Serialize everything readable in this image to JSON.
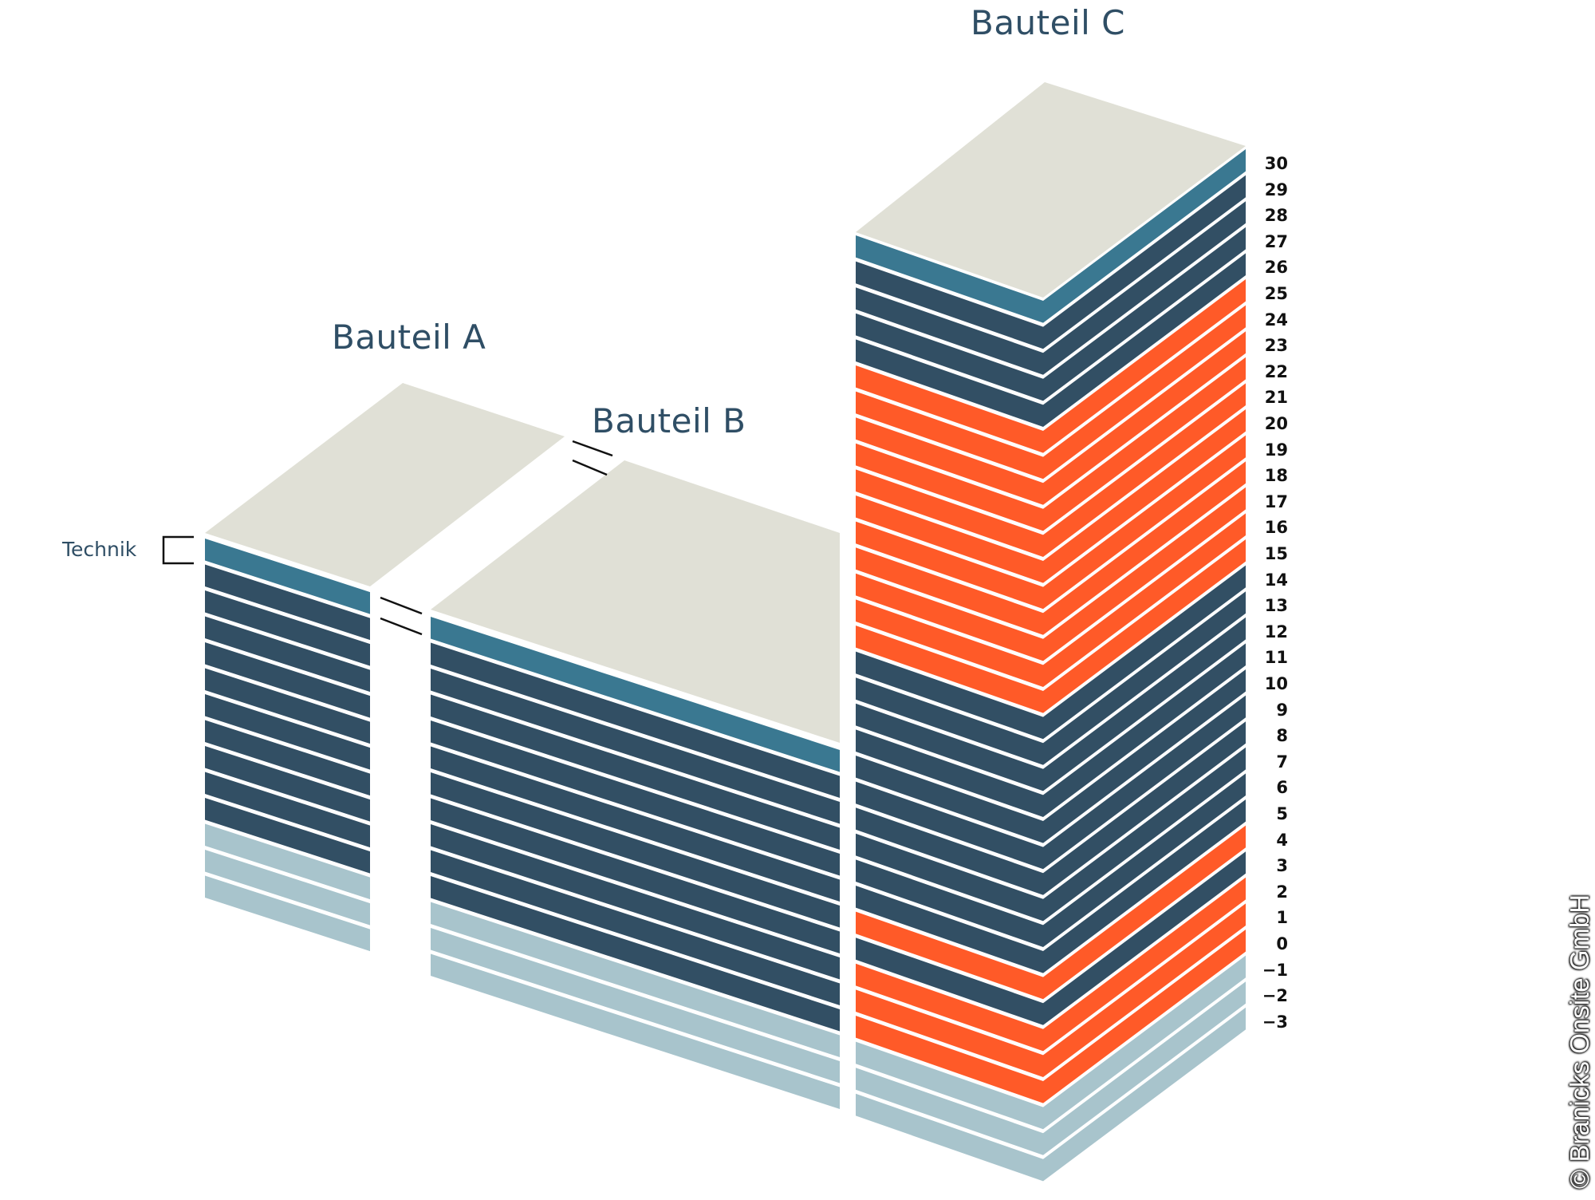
{
  "colors": {
    "roof": "#e0e0d6",
    "technik": "#3a7891",
    "office": "#324f64",
    "highlight": "#ff5a28",
    "basement": "#a8c4cc",
    "separator": "#ffffff",
    "title": "#2f4e65",
    "label": "#111111"
  },
  "titles": {
    "a": "Bauteil A",
    "b": "Bauteil B",
    "c": "Bauteil C"
  },
  "technik_label": "Technik",
  "copyright": "© Branicks Onsite GmbH",
  "buildings": {
    "a": {
      "name": "Bauteil A",
      "floors": [
        "technik",
        "office",
        "office",
        "office",
        "office",
        "office",
        "office",
        "office",
        "office",
        "office",
        "office",
        "basement",
        "basement",
        "basement"
      ]
    },
    "b": {
      "name": "Bauteil B",
      "floors": [
        "technik",
        "office",
        "office",
        "office",
        "office",
        "office",
        "office",
        "office",
        "office",
        "office",
        "office",
        "basement",
        "basement",
        "basement"
      ]
    },
    "c": {
      "name": "Bauteil C",
      "floor_labels": [
        "30",
        "29",
        "28",
        "27",
        "26",
        "25",
        "24",
        "23",
        "22",
        "21",
        "20",
        "19",
        "18",
        "17",
        "16",
        "15",
        "14",
        "13",
        "12",
        "11",
        "10",
        "9",
        "8",
        "7",
        "6",
        "5",
        "4",
        "3",
        "2",
        "1",
        "0",
        "−1",
        "−2",
        "−3"
      ],
      "floors": [
        "technik",
        "office",
        "office",
        "office",
        "office",
        "highlight",
        "highlight",
        "highlight",
        "highlight",
        "highlight",
        "highlight",
        "highlight",
        "highlight",
        "highlight",
        "highlight",
        "highlight",
        "office",
        "office",
        "office",
        "office",
        "office",
        "office",
        "office",
        "office",
        "office",
        "office",
        "highlight",
        "office",
        "highlight",
        "highlight",
        "highlight",
        "basement",
        "basement",
        "basement"
      ]
    }
  }
}
